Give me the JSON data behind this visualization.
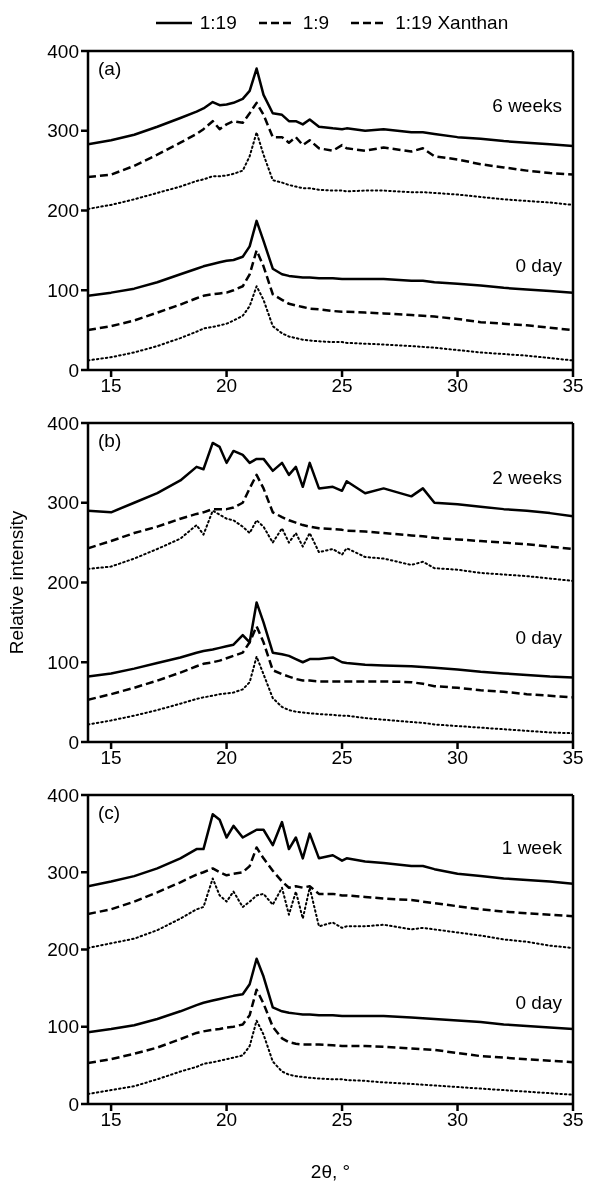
{
  "chart_data": [
    {
      "type": "line",
      "legend": "top",
      "annotations": [
        "(a)",
        "6 weeks",
        "0 day"
      ],
      "x": [
        14,
        15,
        16,
        17,
        18,
        18.7,
        19,
        19.4,
        19.7,
        20,
        20.3,
        20.7,
        21,
        21.3,
        21.6,
        22,
        22.4,
        22.7,
        23,
        23.3,
        23.6,
        24,
        24.6,
        25,
        25.2,
        26,
        26.8,
        28,
        28.5,
        29,
        30,
        31,
        32,
        33,
        34,
        35
      ],
      "xlim": [
        14,
        35
      ],
      "xticks": [
        15,
        20,
        25,
        30,
        35
      ],
      "ylim": [
        0,
        400
      ],
      "yticks": [
        0,
        100,
        200,
        300,
        400
      ],
      "series": [
        {
          "name": "1:19",
          "color": "#000000",
          "line_style": "solid",
          "values": [
            283,
            288,
            295,
            305,
            316,
            324,
            328,
            336,
            332,
            333,
            335,
            340,
            350,
            378,
            345,
            322,
            320,
            312,
            312,
            308,
            314,
            305,
            303,
            302,
            303,
            300,
            302,
            298,
            298,
            296,
            292,
            290,
            287,
            285,
            283,
            281
          ]
        },
        {
          "name": "1:9",
          "color": "#000000",
          "line_style": "dashed",
          "values": [
            242,
            245,
            256,
            270,
            285,
            296,
            302,
            312,
            302,
            308,
            312,
            310,
            322,
            335,
            320,
            292,
            292,
            285,
            292,
            282,
            288,
            278,
            275,
            282,
            278,
            275,
            279,
            274,
            278,
            268,
            264,
            258,
            254,
            250,
            247,
            245
          ]
        },
        {
          "name": "1:19 Xanthan",
          "color": "#000000",
          "line_style": "dotted",
          "values": [
            202,
            207,
            214,
            222,
            230,
            237,
            239,
            243,
            243,
            244,
            246,
            250,
            268,
            298,
            270,
            238,
            235,
            232,
            230,
            228,
            228,
            226,
            225,
            225,
            224,
            225,
            225,
            223,
            223,
            222,
            220,
            217,
            214,
            212,
            210,
            207
          ]
        },
        {
          "color": "#000000",
          "line_style": "solid",
          "values": [
            93,
            97,
            102,
            110,
            120,
            127,
            130,
            133,
            135,
            137,
            138,
            142,
            155,
            187,
            162,
            127,
            120,
            118,
            117,
            116,
            116,
            115,
            115,
            114,
            114,
            114,
            114,
            112,
            112,
            110,
            108,
            106,
            103,
            101,
            99,
            97
          ]
        },
        {
          "color": "#000000",
          "line_style": "dashed",
          "values": [
            50,
            55,
            62,
            72,
            82,
            90,
            93,
            95,
            96,
            97,
            100,
            105,
            120,
            150,
            130,
            95,
            88,
            83,
            81,
            79,
            77,
            76,
            74,
            73,
            73,
            72,
            71,
            69,
            68,
            67,
            64,
            60,
            58,
            56,
            53,
            50
          ]
        },
        {
          "color": "#000000",
          "line_style": "dotted",
          "values": [
            12,
            16,
            22,
            30,
            40,
            48,
            52,
            54,
            56,
            58,
            62,
            68,
            80,
            105,
            88,
            55,
            46,
            42,
            40,
            38,
            37,
            36,
            35,
            35,
            34,
            33,
            32,
            30,
            29,
            28,
            25,
            22,
            20,
            18,
            15,
            12
          ]
        }
      ]
    },
    {
      "type": "line",
      "ylabel": "Relative intensity",
      "annotations": [
        "(b)",
        "2 weeks",
        "0 day"
      ],
      "x": [
        14,
        15,
        16,
        17,
        18,
        18.7,
        19,
        19.4,
        19.7,
        20,
        20.3,
        20.7,
        21,
        21.3,
        21.6,
        22,
        22.4,
        22.7,
        23,
        23.3,
        23.6,
        24,
        24.6,
        25,
        25.2,
        26,
        26.8,
        28,
        28.5,
        29,
        30,
        31,
        32,
        33,
        34,
        35
      ],
      "xlim": [
        14,
        35
      ],
      "xticks": [
        15,
        20,
        25,
        30,
        35
      ],
      "ylim": [
        0,
        400
      ],
      "yticks": [
        0,
        100,
        200,
        300,
        400
      ],
      "series": [
        {
          "color": "#000000",
          "line_style": "solid",
          "values": [
            290,
            288,
            300,
            312,
            328,
            345,
            342,
            375,
            370,
            350,
            365,
            360,
            350,
            355,
            355,
            340,
            350,
            335,
            345,
            320,
            350,
            318,
            320,
            315,
            327,
            312,
            318,
            308,
            318,
            300,
            298,
            295,
            292,
            290,
            287,
            283
          ]
        },
        {
          "color": "#000000",
          "line_style": "dashed",
          "values": [
            243,
            252,
            262,
            270,
            280,
            286,
            288,
            292,
            292,
            292,
            294,
            300,
            318,
            335,
            318,
            288,
            282,
            278,
            275,
            272,
            270,
            268,
            267,
            266,
            265,
            264,
            262,
            259,
            258,
            256,
            254,
            252,
            250,
            248,
            245,
            242
          ]
        },
        {
          "color": "#000000",
          "line_style": "dotted",
          "values": [
            217,
            220,
            230,
            242,
            255,
            272,
            260,
            290,
            285,
            280,
            278,
            270,
            262,
            278,
            270,
            250,
            268,
            250,
            262,
            245,
            262,
            238,
            242,
            235,
            243,
            232,
            230,
            222,
            226,
            218,
            216,
            212,
            210,
            208,
            205,
            202
          ]
        },
        {
          "color": "#000000",
          "line_style": "solid",
          "values": [
            82,
            86,
            92,
            99,
            106,
            112,
            114,
            116,
            118,
            120,
            122,
            134,
            125,
            175,
            150,
            112,
            110,
            108,
            104,
            100,
            104,
            104,
            106,
            100,
            99,
            97,
            96,
            95,
            94,
            93,
            91,
            88,
            86,
            84,
            82,
            81
          ]
        },
        {
          "color": "#000000",
          "line_style": "dashed",
          "values": [
            53,
            60,
            68,
            77,
            87,
            95,
            98,
            100,
            102,
            105,
            108,
            112,
            125,
            145,
            125,
            90,
            85,
            82,
            79,
            77,
            77,
            76,
            76,
            76,
            76,
            76,
            76,
            75,
            73,
            70,
            68,
            65,
            63,
            60,
            58,
            56
          ]
        },
        {
          "color": "#000000",
          "line_style": "dotted",
          "values": [
            22,
            27,
            33,
            40,
            48,
            54,
            56,
            58,
            60,
            61,
            62,
            66,
            75,
            107,
            85,
            55,
            44,
            40,
            38,
            37,
            36,
            35,
            34,
            33,
            33,
            30,
            28,
            25,
            24,
            22,
            20,
            18,
            16,
            14,
            12,
            11
          ]
        }
      ]
    },
    {
      "type": "line",
      "xlabel": "2θ, °",
      "annotations": [
        "(c)",
        "1 week",
        "0 day"
      ],
      "x": [
        14,
        15,
        16,
        17,
        18,
        18.7,
        19,
        19.4,
        19.7,
        20,
        20.3,
        20.7,
        21,
        21.3,
        21.6,
        22,
        22.4,
        22.7,
        23,
        23.3,
        23.6,
        24,
        24.6,
        25,
        25.2,
        26,
        26.8,
        28,
        28.5,
        29,
        30,
        31,
        32,
        33,
        34,
        35
      ],
      "xlim": [
        14,
        35
      ],
      "xticks": [
        15,
        20,
        25,
        30,
        35
      ],
      "ylim": [
        0,
        400
      ],
      "yticks": [
        0,
        100,
        200,
        300,
        400
      ],
      "series": [
        {
          "color": "#000000",
          "line_style": "solid",
          "values": [
            282,
            288,
            295,
            305,
            318,
            330,
            330,
            375,
            368,
            345,
            360,
            345,
            350,
            355,
            355,
            335,
            365,
            330,
            345,
            318,
            350,
            318,
            322,
            315,
            318,
            314,
            312,
            308,
            308,
            304,
            298,
            295,
            292,
            290,
            288,
            285
          ]
        },
        {
          "color": "#000000",
          "line_style": "dashed",
          "values": [
            246,
            252,
            262,
            274,
            287,
            297,
            300,
            305,
            300,
            296,
            298,
            300,
            308,
            332,
            318,
            302,
            288,
            280,
            282,
            280,
            282,
            272,
            272,
            270,
            270,
            268,
            266,
            264,
            262,
            260,
            256,
            252,
            249,
            247,
            245,
            243
          ]
        },
        {
          "color": "#000000",
          "line_style": "dotted",
          "values": [
            202,
            208,
            214,
            225,
            240,
            252,
            255,
            292,
            270,
            262,
            275,
            255,
            262,
            270,
            272,
            258,
            280,
            245,
            275,
            240,
            280,
            230,
            235,
            228,
            230,
            230,
            232,
            226,
            228,
            226,
            222,
            218,
            213,
            210,
            205,
            202
          ]
        },
        {
          "color": "#000000",
          "line_style": "solid",
          "values": [
            93,
            97,
            102,
            110,
            120,
            128,
            131,
            134,
            136,
            138,
            140,
            142,
            155,
            188,
            165,
            125,
            120,
            118,
            117,
            116,
            116,
            115,
            115,
            114,
            114,
            114,
            114,
            112,
            111,
            110,
            108,
            106,
            103,
            101,
            99,
            97
          ]
        },
        {
          "color": "#000000",
          "line_style": "dashed",
          "values": [
            53,
            58,
            65,
            73,
            84,
            92,
            94,
            96,
            97,
            99,
            100,
            103,
            115,
            148,
            130,
            100,
            85,
            80,
            78,
            77,
            77,
            77,
            76,
            75,
            75,
            75,
            74,
            72,
            71,
            70,
            66,
            62,
            60,
            58,
            56,
            54
          ]
        },
        {
          "color": "#000000",
          "line_style": "dotted",
          "values": [
            13,
            18,
            23,
            32,
            42,
            48,
            52,
            54,
            56,
            58,
            60,
            63,
            75,
            108,
            90,
            55,
            42,
            38,
            36,
            35,
            34,
            33,
            32,
            32,
            31,
            30,
            28,
            26,
            25,
            24,
            22,
            20,
            18,
            16,
            14,
            12
          ]
        }
      ]
    }
  ]
}
